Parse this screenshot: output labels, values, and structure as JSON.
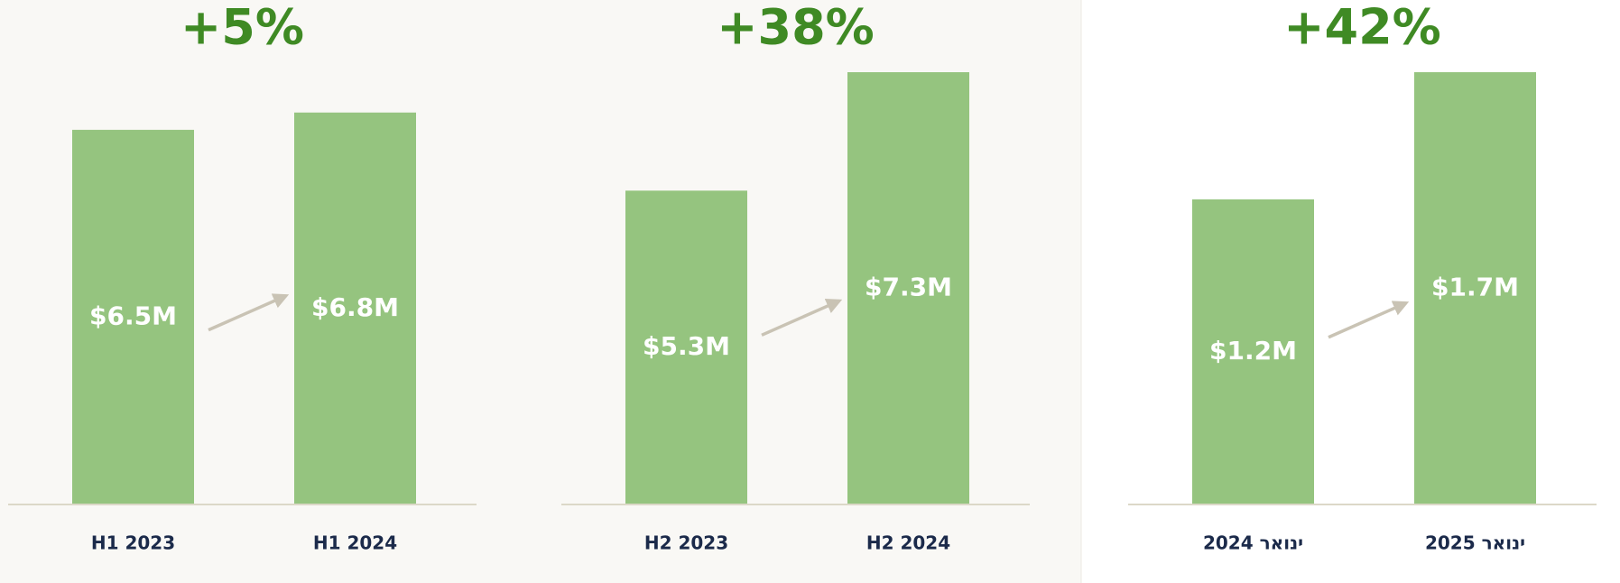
{
  "chart_data": [
    {
      "type": "bar",
      "title": "+5%",
      "categories": [
        "H1 2023",
        "H1 2024"
      ],
      "values": [
        6.5,
        6.8
      ],
      "value_labels": [
        "$6.5M",
        "$6.8M"
      ],
      "color": "#95c47f",
      "ylim": [
        0,
        7.5
      ]
    },
    {
      "type": "bar",
      "title": "+38%",
      "categories": [
        "H2 2023",
        "H2 2024"
      ],
      "values": [
        5.3,
        7.3
      ],
      "value_labels": [
        "$5.3M",
        "$7.3M"
      ],
      "color": "#95c47f",
      "ylim": [
        0,
        7.3
      ]
    },
    {
      "type": "bar",
      "title": "+42%",
      "categories": [
        "ינואר 2024",
        "ינואר 2025"
      ],
      "values": [
        1.2,
        1.7
      ],
      "value_labels": [
        "$1.2M",
        "$1.7M"
      ],
      "color": "#95c47f",
      "ylim": [
        0,
        1.7
      ]
    }
  ]
}
